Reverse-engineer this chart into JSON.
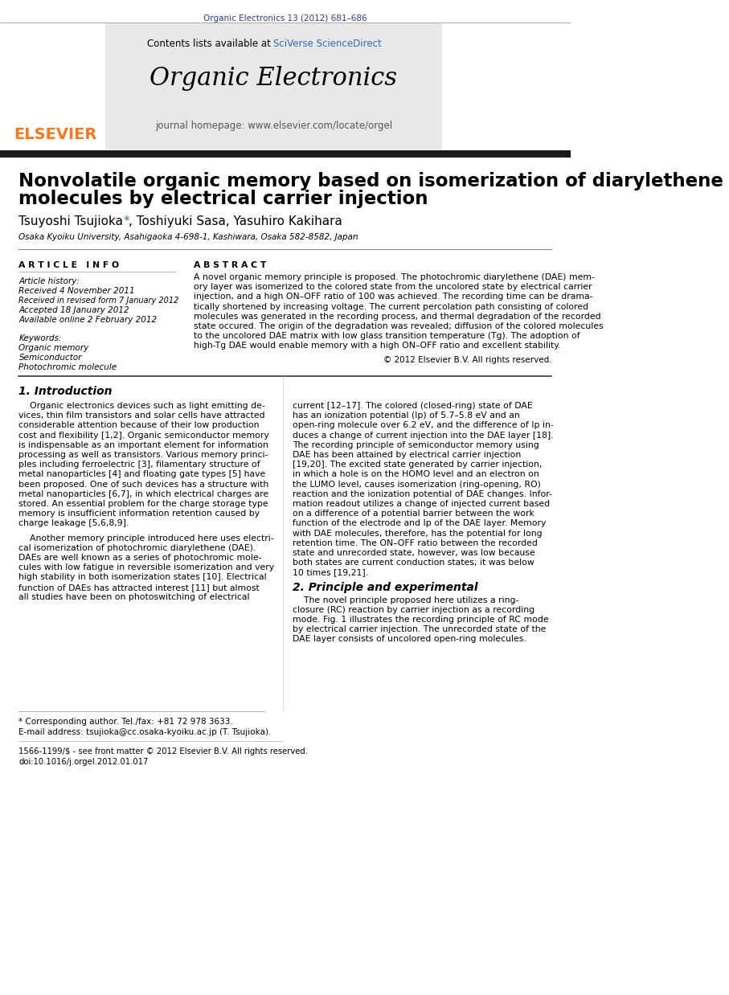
{
  "page_bg": "#ffffff",
  "journal_ref_text": "Organic Electronics 13 (2012) 681–686",
  "journal_ref_color": "#2b3a8c",
  "header_bg": "#e8e8e8",
  "header_title": "Organic Electronics",
  "header_contents": "Contents lists available at",
  "header_sciverse": "SciVerse ScienceDirect",
  "header_homepage": "journal homepage: www.elsevier.com/locate/orgel",
  "elsevier_color": "#f47920",
  "dark_bar_color": "#1a1a1a",
  "paper_title_line1": "Nonvolatile organic memory based on isomerization of diarylethene",
  "paper_title_line2": "molecules by electrical carrier injection",
  "authors_pre": "Tsuyoshi Tsujioka ",
  "authors_star": "*",
  "authors_post": ", Toshiyuki Sasa, Yasuhiro Kakihara",
  "affiliation": "Osaka Kyoiku University, Asahigaoka 4-698-1, Kashiwara, Osaka 582-8582, Japan",
  "article_info_header": "A R T I C L E   I N F O",
  "abstract_header": "A B S T R A C T",
  "article_history_label": "Article history:",
  "received1": "Received 4 November 2011",
  "received2": "Received in revised form 7 January 2012",
  "accepted": "Accepted 18 January 2012",
  "available": "Available online 2 February 2012",
  "keywords_label": "Keywords:",
  "keyword1": "Organic memory",
  "keyword2": "Semiconductor",
  "keyword3": "Photochromic molecule",
  "copyright": "© 2012 Elsevier B.V. All rights reserved.",
  "intro_header": "1. Introduction",
  "section2_header": "2. Principle and experimental",
  "footnote_star": "* Corresponding author. Tel./fax: +81 72 978 3633.",
  "footnote_email": "E-mail address: tsujioka@cc.osaka-kyoiku.ac.jp (T. Tsujioka).",
  "footer_issn": "1566-1199/$ - see front matter © 2012 Elsevier B.V. All rights reserved.",
  "footer_doi": "doi:10.1016/j.orgel.2012.01.017",
  "abstract_lines": [
    "A novel organic memory principle is proposed. The photochromic diarylethene (DAE) mem-",
    "ory layer was isomerized to the colored state from the uncolored state by electrical carrier",
    "injection, and a high ON–OFF ratio of 100 was achieved. The recording time can be drama-",
    "tically shortened by increasing voltage. The current percolation path consisting of colored",
    "molecules was generated in the recording process, and thermal degradation of the recorded",
    "state occured. The origin of the degradation was revealed; diffusion of the colored molecules",
    "to the uncolored DAE matrix with low glass transition temperature (Tg). The adoption of",
    "high-Tg DAE would enable memory with a high ON–OFF ratio and excellent stability."
  ],
  "intro_left_lines": [
    "    Organic electronics devices such as light emitting de-",
    "vices, thin film transistors and solar cells have attracted",
    "considerable attention because of their low production",
    "cost and flexibility [1,2]. Organic semiconductor memory",
    "is indispensable as an important element for information",
    "processing as well as transistors. Various memory princi-",
    "ples including ferroelectric [3], filamentary structure of",
    "metal nanoparticles [4] and floating gate types [5] have",
    "been proposed. One of such devices has a structure with",
    "metal nanoparticles [6,7], in which electrical charges are",
    "stored. An essential problem for the charge storage type",
    "memory is insufficient information retention caused by",
    "charge leakage [5,6,8,9].",
    "    Another memory principle introduced here uses electri-",
    "cal isomerization of photochromic diarylethene (DAE).",
    "DAEs are well known as a series of photochromic mole-",
    "cules with low fatigue in reversible isomerization and very",
    "high stability in both isomerization states [10]. Electrical",
    "function of DAEs has attracted interest [11] but almost",
    "all studies have been on photoswitching of electrical"
  ],
  "intro_right_lines": [
    "current [12–17]. The colored (closed-ring) state of DAE",
    "has an ionization potential (Ip) of 5.7–5.8 eV and an",
    "open-ring molecule over 6.2 eV, and the difference of Ip in-",
    "duces a change of current injection into the DAE layer [18].",
    "The recording principle of semiconductor memory using",
    "DAE has been attained by electrical carrier injection",
    "[19,20]. The excited state generated by carrier injection,",
    "in which a hole is on the HOMO level and an electron on",
    "the LUMO level, causes isomerization (ring-opening, RO)",
    "reaction and the ionization potential of DAE changes. Infor-",
    "mation readout utilizes a change of injected current based",
    "on a difference of a potential barrier between the work",
    "function of the electrode and Ip of the DAE layer. Memory",
    "with DAE molecules, therefore, has the potential for long",
    "retention time. The ON–OFF ratio between the recorded",
    "state and unrecorded state, however, was low because",
    "both states are current conduction states; it was below",
    "10 times [19,21].",
    "",
    "    The novel principle proposed here utilizes a ring-",
    "closure (RC) reaction by carrier injection as a recording",
    "mode. Fig. 1 illustrates the recording principle of RC mode",
    "by electrical carrier injection. The unrecorded state of the",
    "DAE layer consists of uncolored open-ring molecules."
  ]
}
